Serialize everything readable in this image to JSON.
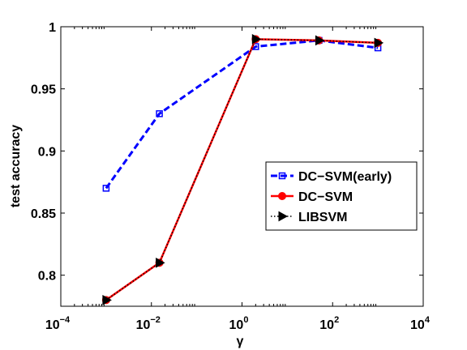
{
  "chart_data": {
    "type": "line",
    "xscale": "log",
    "xlabel": "γ",
    "ylabel": "test accuracy",
    "xlim": [
      0.0001,
      10000
    ],
    "ylim": [
      0.775,
      1.0
    ],
    "x_ticks": [
      {
        "value": 0.0001,
        "base": "10",
        "exp": "−4"
      },
      {
        "value": 0.01,
        "base": "10",
        "exp": "−2"
      },
      {
        "value": 1,
        "base": "10",
        "exp": "0"
      },
      {
        "value": 100,
        "base": "10",
        "exp": "2"
      },
      {
        "value": 10000,
        "base": "10",
        "exp": "4"
      }
    ],
    "y_ticks": [
      {
        "value": 0.8,
        "label": "0.8"
      },
      {
        "value": 0.85,
        "label": "0.85"
      },
      {
        "value": 0.9,
        "label": "0.9"
      },
      {
        "value": 0.95,
        "label": "0.95"
      },
      {
        "value": 1.0,
        "label": "1"
      }
    ],
    "series": [
      {
        "name": "DC−SVM(early)",
        "color": "#0000ff",
        "style": "dashed",
        "marker": "square",
        "x": [
          0.001,
          0.015,
          2,
          50,
          1000
        ],
        "y": [
          0.87,
          0.93,
          0.984,
          0.989,
          0.983
        ]
      },
      {
        "name": "DC−SVM",
        "color": "#ff0000",
        "style": "solid",
        "marker": "circle",
        "x": [
          0.001,
          0.015,
          2,
          50,
          1000
        ],
        "y": [
          0.78,
          0.81,
          0.99,
          0.989,
          0.987
        ]
      },
      {
        "name": "LIBSVM",
        "color": "#000000",
        "style": "dotted",
        "marker": "triangle-right",
        "x": [
          0.001,
          0.015,
          2,
          50,
          1000
        ],
        "y": [
          0.78,
          0.81,
          0.99,
          0.989,
          0.987
        ]
      }
    ],
    "legend": {
      "position": "right-middle"
    },
    "grid": false
  }
}
